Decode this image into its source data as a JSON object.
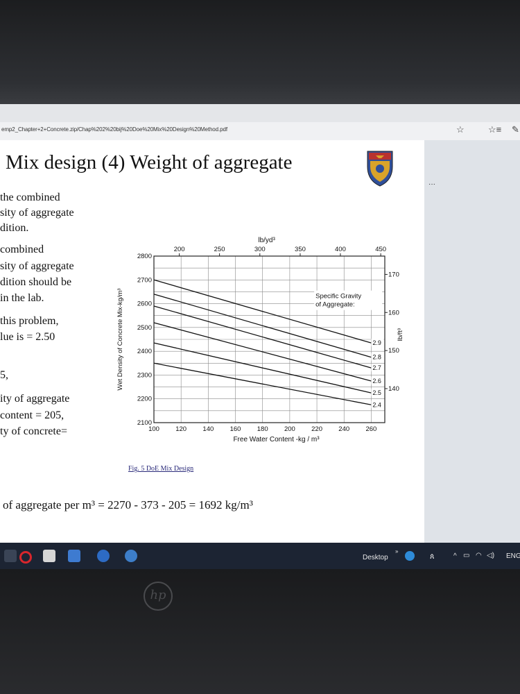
{
  "browser": {
    "url": "emp2_Chapter+2+Concrete.zip/Chap%202%20bij%20Doe%20Mix%20Design%20Method.pdf",
    "star_icon": "star-icon",
    "favorites_icon": "favorites-icon"
  },
  "slide": {
    "title": "Mix design (4) Weight of aggregate",
    "left_lines": [
      "the combined",
      "sity of aggregate",
      "dition.",
      "combined",
      "sity of aggregate",
      "dition should be",
      "in the lab.",
      "this problem,",
      "lue is = 2.50",
      "5,",
      "ity of aggregate",
      "content = 205,",
      "ty of concrete="
    ],
    "caption": "Fig. 5 DoE Mix Design",
    "bottom_equation": "of aggregate per m³ = 2270 - 373 - 205 = 1692 kg/m³"
  },
  "chart_data": {
    "type": "line",
    "xlabel": "Free Water Content -kg / m³",
    "ylabel": "Wet Density of Concrete Mix-kg/m³",
    "top_axis_label": "lb/yd³",
    "right_axis_label": "lb/ft³",
    "legend_title": "Specific Gravity of Aggregate:",
    "xlim": [
      100,
      270
    ],
    "ylim": [
      2100,
      2800
    ],
    "x_ticks": [
      "100",
      "120",
      "140",
      "160",
      "180",
      "200",
      "220",
      "240",
      "260"
    ],
    "y_ticks": [
      "2100",
      "2200",
      "2300",
      "2400",
      "2500",
      "2600",
      "2700",
      "2800"
    ],
    "top_ticks": [
      {
        "label": "200",
        "kg": 118.7
      },
      {
        "label": "250",
        "kg": 148.3
      },
      {
        "label": "300",
        "kg": 178.0
      },
      {
        "label": "350",
        "kg": 207.7
      },
      {
        "label": "400",
        "kg": 237.3
      },
      {
        "label": "450",
        "kg": 267.0
      }
    ],
    "right_ticks": [
      {
        "label": "170",
        "kg": 2723
      },
      {
        "label": "160",
        "kg": 2563
      },
      {
        "label": "150",
        "kg": 2403
      },
      {
        "label": "140",
        "kg": 2243
      }
    ],
    "series": [
      {
        "name": "2.9",
        "x": [
          100,
          260
        ],
        "y": [
          2700,
          2435
        ]
      },
      {
        "name": "2.8",
        "x": [
          100,
          260
        ],
        "y": [
          2640,
          2375
        ]
      },
      {
        "name": "2.7",
        "x": [
          100,
          260
        ],
        "y": [
          2590,
          2330
        ]
      },
      {
        "name": "2.6",
        "x": [
          100,
          260
        ],
        "y": [
          2520,
          2275
        ]
      },
      {
        "name": "2.5",
        "x": [
          100,
          260
        ],
        "y": [
          2435,
          2225
        ]
      },
      {
        "name": "2.4",
        "x": [
          100,
          260
        ],
        "y": [
          2350,
          2175
        ]
      }
    ]
  },
  "taskbar": {
    "desktop_label": "Desktop",
    "chevron": "»",
    "tray_text": "ENG",
    "icons": [
      "opera-icon",
      "store-icon",
      "mail-icon",
      "app-icon",
      "app-icon-2"
    ]
  },
  "brand": {
    "hp_logo": "hp"
  },
  "colors": {
    "slide_bg": "#ffffff",
    "taskbar": "#1c2433",
    "opera_red": "#d8262c",
    "crest_red": "#b8322f",
    "crest_blue": "#2f4f9a",
    "crest_gold": "#d9a32a"
  }
}
